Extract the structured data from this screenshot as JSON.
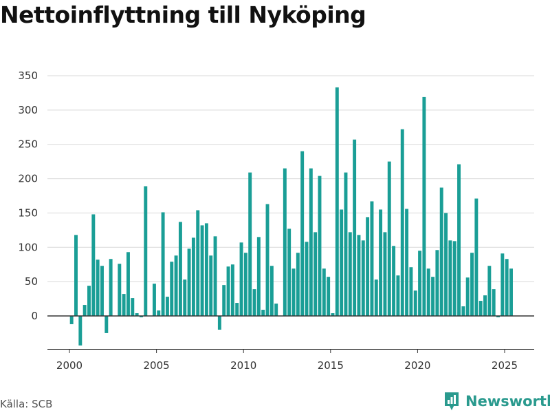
{
  "chart_data": {
    "type": "bar",
    "title": "Nettoinflyttning till Nyköping",
    "xlabel": "",
    "ylabel": "",
    "ylim": [
      -50,
      350
    ],
    "xlim": [
      2000,
      2025
    ],
    "y_ticks": [
      0,
      50,
      100,
      150,
      200,
      250,
      300,
      350
    ],
    "x_ticks": [
      2000,
      2005,
      2010,
      2015,
      2020,
      2025
    ],
    "grid": true,
    "legend": "none",
    "bar_color": "#1a9e96",
    "quarters": [
      "2000Q1",
      "2000Q2",
      "2000Q3",
      "2000Q4",
      "2001Q1",
      "2001Q2",
      "2001Q3",
      "2001Q4",
      "2002Q1",
      "2002Q2",
      "2002Q3",
      "2002Q4",
      "2003Q1",
      "2003Q2",
      "2003Q3",
      "2003Q4",
      "2004Q1",
      "2004Q2",
      "2004Q3",
      "2004Q4",
      "2005Q1",
      "2005Q2",
      "2005Q3",
      "2005Q4",
      "2006Q1",
      "2006Q2",
      "2006Q3",
      "2006Q4",
      "2007Q1",
      "2007Q2",
      "2007Q3",
      "2007Q4",
      "2008Q1",
      "2008Q2",
      "2008Q3",
      "2008Q4",
      "2009Q1",
      "2009Q2",
      "2009Q3",
      "2009Q4",
      "2010Q1",
      "2010Q2",
      "2010Q3",
      "2010Q4",
      "2011Q1",
      "2011Q2",
      "2011Q3",
      "2011Q4",
      "2012Q1",
      "2012Q2",
      "2012Q3",
      "2012Q4",
      "2013Q1",
      "2013Q2",
      "2013Q3",
      "2013Q4",
      "2014Q1",
      "2014Q2",
      "2014Q3",
      "2014Q4",
      "2015Q1",
      "2015Q2",
      "2015Q3",
      "2015Q4",
      "2016Q1",
      "2016Q2",
      "2016Q3",
      "2016Q4",
      "2017Q1",
      "2017Q2",
      "2017Q3",
      "2017Q4",
      "2018Q1",
      "2018Q2",
      "2018Q3",
      "2018Q4",
      "2019Q1",
      "2019Q2",
      "2019Q3",
      "2019Q4",
      "2020Q1",
      "2020Q2",
      "2020Q3",
      "2020Q4",
      "2021Q1",
      "2021Q2",
      "2021Q3",
      "2021Q4",
      "2022Q1",
      "2022Q2",
      "2022Q3",
      "2022Q4",
      "2023Q1",
      "2023Q2",
      "2023Q3",
      "2023Q4",
      "2024Q1",
      "2024Q2",
      "2024Q3",
      "2024Q4",
      "2025Q1",
      "2025Q2",
      "2025Q3"
    ],
    "values": [
      -12,
      118,
      -43,
      16,
      44,
      148,
      82,
      73,
      -25,
      83,
      0,
      76,
      32,
      93,
      26,
      4,
      -2,
      189,
      0,
      47,
      8,
      151,
      28,
      79,
      88,
      137,
      53,
      98,
      114,
      154,
      132,
      135,
      88,
      116,
      -20,
      45,
      72,
      75,
      19,
      107,
      92,
      209,
      39,
      115,
      9,
      163,
      73,
      18,
      0,
      215,
      127,
      69,
      92,
      240,
      108,
      215,
      122,
      204,
      69,
      57,
      4,
      333,
      155,
      209,
      122,
      257,
      118,
      110,
      144,
      167,
      53,
      155,
      122,
      225,
      102,
      59,
      272,
      156,
      71,
      37,
      95,
      319,
      69,
      57,
      96,
      187,
      150,
      110,
      109,
      221,
      14,
      56,
      92,
      171,
      22,
      30,
      73,
      39,
      -2,
      91,
      83,
      69,
      0
    ]
  },
  "footer": {
    "source": "Källa: SCB",
    "brand": "Newsworthy",
    "brand_icon": "bar-chart-logo-icon",
    "brand_color": "#2a9a8e"
  }
}
